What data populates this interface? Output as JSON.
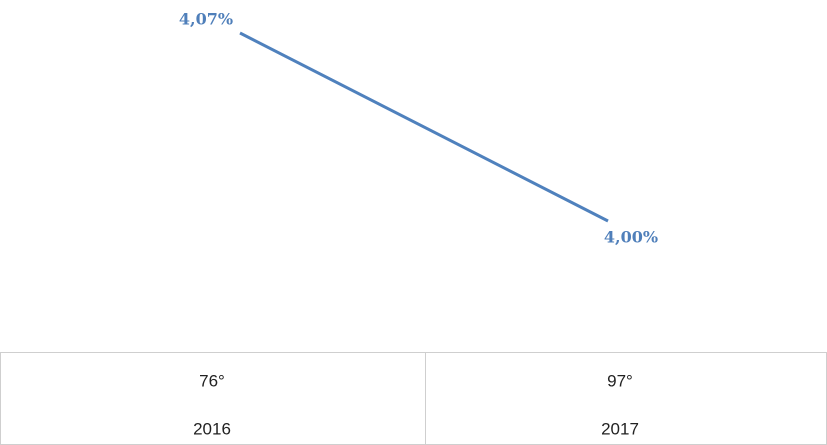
{
  "chart_data": {
    "type": "line",
    "categories_top": [
      "76°",
      "97°"
    ],
    "categories": [
      "2016",
      "2017"
    ],
    "series": [
      {
        "color": "#4f81bd",
        "values": [
          4.07,
          4.0
        ],
        "value_labels": [
          "4,07%",
          "4,00%"
        ]
      }
    ]
  }
}
